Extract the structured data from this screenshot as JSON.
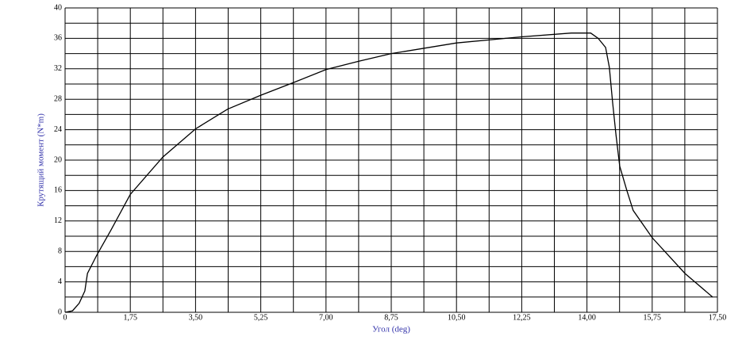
{
  "chart_data": {
    "type": "line",
    "x_label": "Угол (deg)",
    "y_label": "Крутящий момент (N*m)",
    "xlim": [
      0,
      17.5
    ],
    "ylim": [
      0,
      40
    ],
    "xticks": [
      0,
      {
        "value": 1.75,
        "label": "1,75"
      },
      {
        "value": 3.5,
        "label": "3,50"
      },
      {
        "value": 5.25,
        "label": "5,25"
      },
      {
        "value": 7,
        "label": "7,00"
      },
      {
        "value": 8.75,
        "label": "8,75"
      },
      {
        "value": 10.5,
        "label": "10,50"
      },
      {
        "value": 12.25,
        "label": "12,25"
      },
      {
        "value": 14,
        "label": "14,00"
      },
      {
        "value": 15.75,
        "label": "15,75"
      },
      {
        "value": 17.5,
        "label": "17,50"
      }
    ],
    "yticks": [
      0,
      4,
      8,
      12,
      16,
      20,
      24,
      28,
      32,
      36,
      40
    ],
    "grid": true,
    "color": "#000000",
    "x": [
      0,
      0.2,
      0.38,
      0.53,
      0.6,
      0.85,
      1.23,
      1.75,
      2.62,
      3.5,
      4.36,
      5.24,
      6.13,
      7,
      7.88,
      8.75,
      10.5,
      12.24,
      13.58,
      14.1,
      14.3,
      14.5,
      14.6,
      14.69,
      14.78,
      14.88,
      15.07,
      15.24,
      15.75,
      16.63,
      17.37
    ],
    "values": [
      0,
      0.2,
      1.2,
      2.8,
      5.1,
      7.5,
      10.8,
      15.5,
      20.4,
      24.1,
      26.7,
      28.5,
      30.2,
      31.9,
      33,
      34,
      35.4,
      36.2,
      36.7,
      36.7,
      36,
      34.8,
      32.2,
      27.5,
      23.3,
      19.2,
      16,
      13.4,
      9.8,
      5.1,
      2
    ]
  }
}
